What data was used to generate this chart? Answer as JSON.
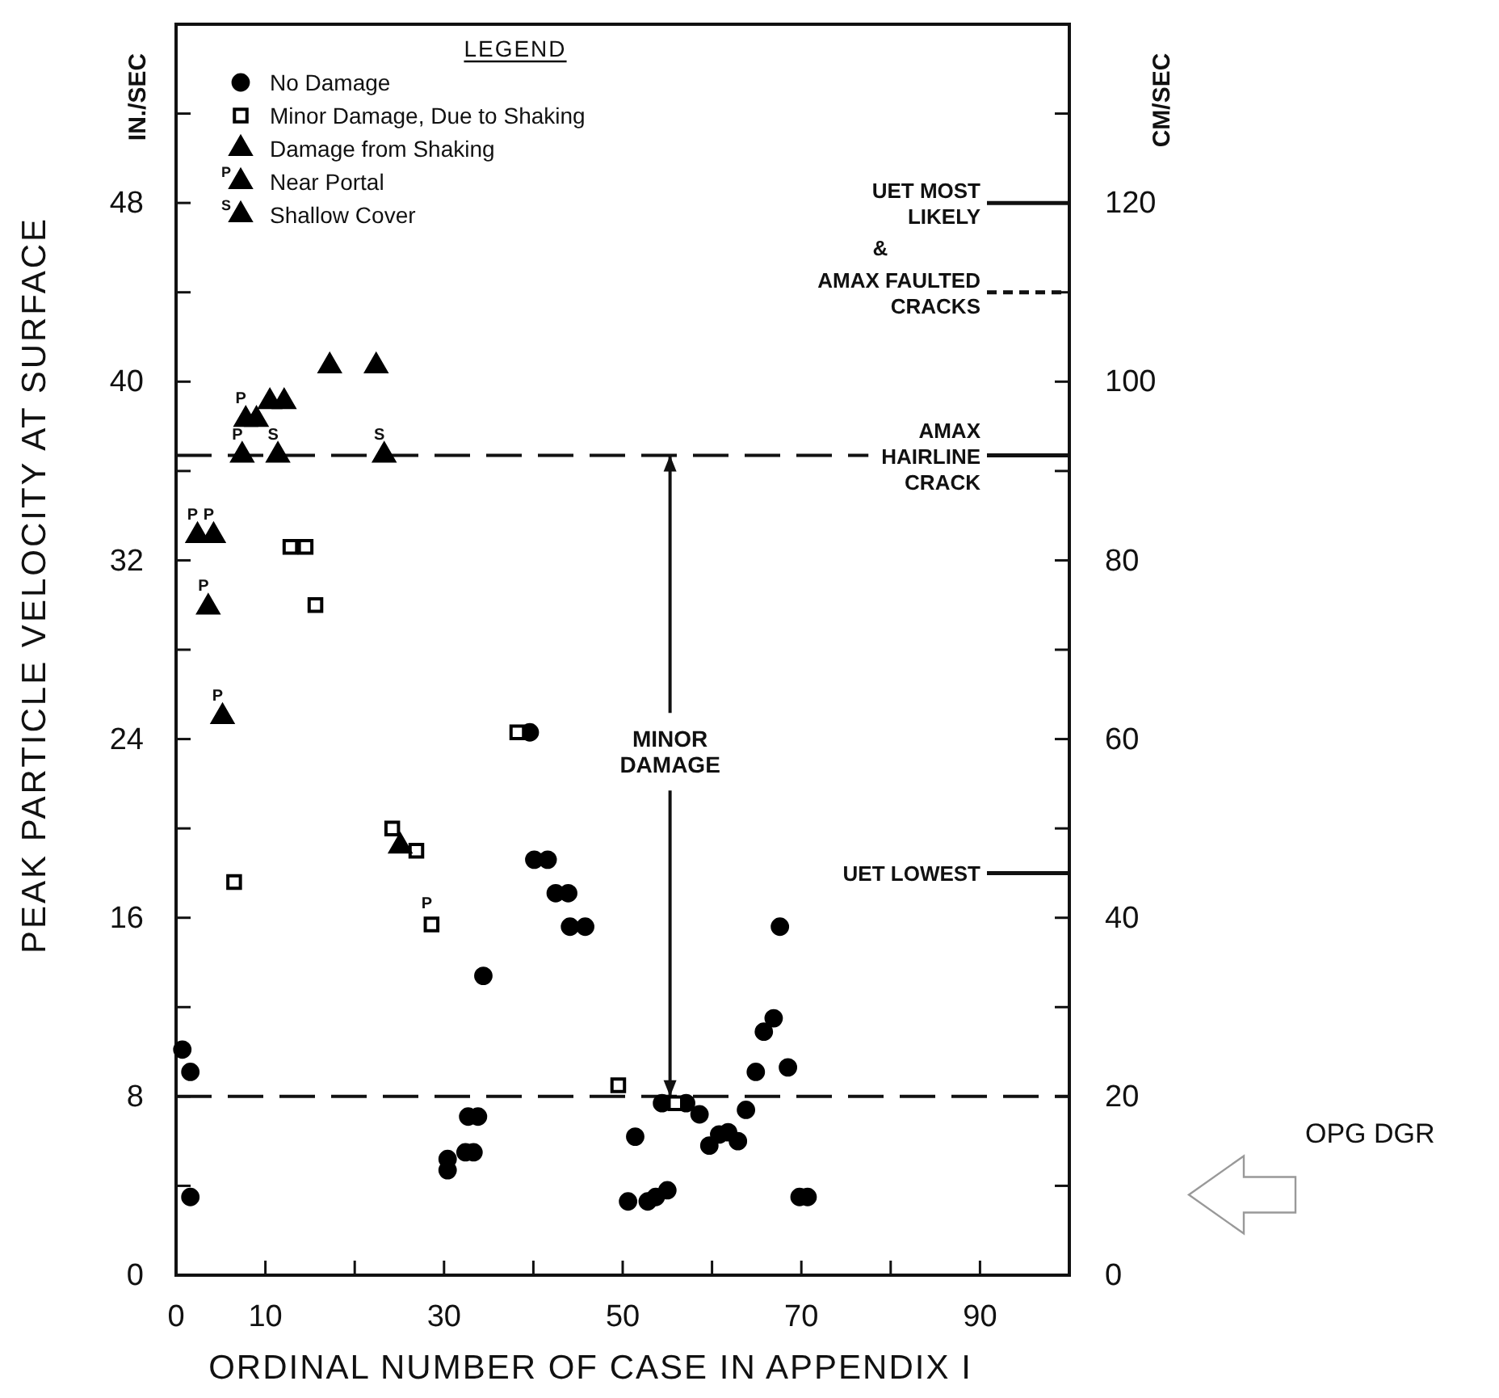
{
  "chart_data": {
    "type": "scatter",
    "xlabel": "ORDINAL NUMBER OF CASE IN APPENDIX I",
    "ylabel": "PEAK PARTICLE VELOCITY AT SURFACE",
    "y2label": "CM/SEC",
    "legend_title": "LEGEND",
    "legend": "top left",
    "grid": false,
    "xlim": [
      0,
      100
    ],
    "xticks": [
      0,
      10,
      {
        "value": 20,
        "label": null
      },
      30,
      {
        "value": 40,
        "label": null
      },
      50,
      {
        "value": 60,
        "label": null
      },
      70,
      {
        "value": 80,
        "label": null
      },
      90,
      {
        "value": 100,
        "label": null
      }
    ],
    "ylim": [
      0,
      56
    ],
    "yticks": [
      0,
      {
        "value": 4,
        "label": null
      },
      8,
      {
        "value": 12,
        "label": null
      },
      16,
      {
        "value": 20,
        "label": null
      },
      24,
      {
        "value": 28,
        "label": null
      },
      32,
      {
        "value": 36,
        "label": null
      },
      40,
      {
        "value": 44,
        "label": null
      },
      48,
      {
        "value": 52,
        "label": null
      }
    ],
    "y2lim": [
      0,
      140
    ],
    "y2ticks": [
      0,
      {
        "value": 10,
        "label": null
      },
      20,
      {
        "value": 30,
        "label": null
      },
      40,
      {
        "value": 50,
        "label": null
      },
      60,
      {
        "value": 70,
        "label": null
      },
      80,
      {
        "value": 90,
        "label": null
      },
      100,
      {
        "value": 110,
        "label": null
      },
      120,
      {
        "value": 130,
        "label": null
      }
    ],
    "series": [
      {
        "name": "No Damage",
        "color": "#000000",
        "marker": "circle",
        "x": [
          0.7,
          1.6,
          1.6,
          30.4,
          30.4,
          32.4,
          32.7,
          33.3,
          33.8,
          34.4,
          39.6,
          40.1,
          41.6,
          42.5,
          43.9,
          44.1,
          45.8,
          50.6,
          51.4,
          52.8,
          53.7,
          54.4,
          55.0,
          57.1,
          58.6,
          59.7,
          60.8,
          61.8,
          62.9,
          63.8,
          64.9,
          65.8,
          66.9,
          67.6,
          68.5,
          69.8,
          70.7
        ],
        "values": [
          10.1,
          9.1,
          3.5,
          5.2,
          4.7,
          5.5,
          7.1,
          5.5,
          7.1,
          13.4,
          24.3,
          18.6,
          18.6,
          17.1,
          17.1,
          15.6,
          15.6,
          3.3,
          6.2,
          3.3,
          3.5,
          7.7,
          3.8,
          7.7,
          7.2,
          5.8,
          6.3,
          6.4,
          6.0,
          7.4,
          9.1,
          10.9,
          11.5,
          15.6,
          9.3,
          3.5,
          3.5
        ]
      },
      {
        "name": "Minor Damage, Due to Shaking",
        "color": "#000000",
        "marker": "square",
        "x": [
          6.5,
          12.8,
          14.5,
          15.6,
          24.2,
          26.9,
          28.6,
          38.2,
          49.5,
          55.9
        ],
        "values": [
          17.6,
          32.6,
          32.6,
          30.0,
          20.0,
          19.0,
          15.7,
          24.3,
          8.5,
          7.7
        ],
        "value_labels": [
          null,
          null,
          null,
          null,
          null,
          null,
          "P",
          null,
          null,
          null
        ]
      },
      {
        "name": "Damage from Shaking",
        "color": "#000000",
        "marker": "triangle",
        "x": [
          9.0,
          10.5,
          12.1,
          17.2,
          22.4,
          25.1
        ],
        "values": [
          38.3,
          39.1,
          39.1,
          40.7,
          40.7,
          19.2
        ]
      },
      {
        "name": "Near Portal",
        "color": "#000000",
        "marker": "triangle",
        "x": [
          2.4,
          4.2,
          3.6,
          5.2,
          7.8,
          7.4
        ],
        "values": [
          33.1,
          33.1,
          29.9,
          25.0,
          38.3,
          36.7
        ],
        "value_labels": [
          "P",
          "P",
          "P",
          "P",
          "P",
          "P"
        ]
      },
      {
        "name": "Shallow Cover",
        "color": "#000000",
        "marker": "triangle",
        "x": [
          11.4,
          23.3
        ],
        "values": [
          36.7,
          36.7
        ],
        "value_labels": [
          "S",
          "S"
        ]
      }
    ],
    "ref_lines": [
      {
        "axis": "y",
        "value": 36.7,
        "label": "AMAX HAIRLINE CRACK",
        "line_style": "dashed"
      },
      {
        "axis": "y",
        "value": 8,
        "line_style": "dashed"
      },
      {
        "axis": "y2",
        "value": 120,
        "label": "UET MOST LIKELY",
        "line_style": "solid"
      },
      {
        "axis": "y2",
        "value": 110,
        "label": "AMAX FAULTED CRACKS",
        "line_style": "dashed"
      },
      {
        "axis": "y2",
        "value": 45,
        "label": "UET LOWEST",
        "line_style": "solid"
      }
    ],
    "annotations": [
      "IN./SEC",
      "&",
      "OPG DGR",
      {
        "text": "MINOR DAMAGE",
        "x": 55.3,
        "y": 8
      }
    ]
  }
}
